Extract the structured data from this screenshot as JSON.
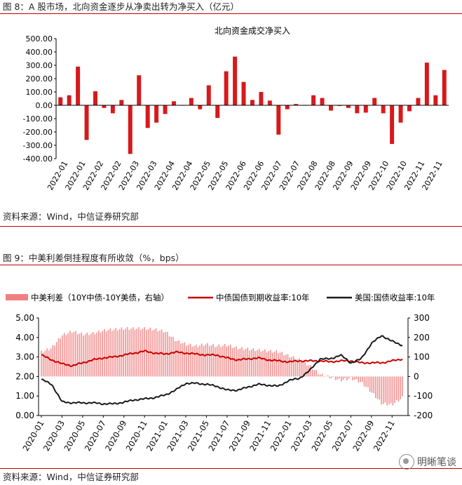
{
  "figure8": {
    "title": "图 8：A 股市场，北向资金逐步从净卖出转为净买入（亿元）",
    "source": "资料来源：Wind，中信证券研究部"
  },
  "figure9": {
    "title": "图 9：中美利差倒挂程度有所收敛（%，bps）",
    "source": "资料来源：Wind，中信证券研究部"
  },
  "watermark": {
    "text": "明晰笔谈"
  },
  "chart_data": [
    {
      "type": "bar",
      "title": "北向资金成交净买入",
      "color": "#d7191c",
      "ylim": [
        -400,
        500
      ],
      "yticks": [
        -400,
        -300,
        -200,
        -100,
        0,
        100,
        200,
        300,
        400,
        500
      ],
      "ytick_labels": [
        "-400.00",
        "-300.00",
        "-200.00",
        "-100.00",
        "0.00",
        "100.00",
        "200.00",
        "300.00",
        "400.00",
        "500.00"
      ],
      "xtick_labels": [
        "2022-01",
        "2022-01",
        "2022-02",
        "2022-02",
        "2022-03",
        "2022-03",
        "2022-04",
        "2022-04",
        "2022-05",
        "2022-05",
        "2022-06",
        "2022-06",
        "2022-07",
        "2022-07",
        "2022-08",
        "2022-08",
        "2022-09",
        "2022-09",
        "2022-10",
        "2022-10",
        "2022-11",
        "2022-11"
      ],
      "values": [
        60,
        75,
        290,
        -260,
        105,
        -20,
        -60,
        40,
        -365,
        225,
        -170,
        -130,
        -65,
        30,
        0,
        55,
        -30,
        150,
        -95,
        255,
        365,
        175,
        40,
        100,
        35,
        -220,
        -30,
        10,
        0,
        75,
        55,
        -40,
        -5,
        -20,
        -60,
        -55,
        55,
        -60,
        -290,
        -130,
        -45,
        55,
        320,
        75,
        265
      ]
    },
    {
      "type": "line",
      "subtype": "bar+line dual axis",
      "legend": [
        "中美利差（10Y中债-10Y美债，右轴）",
        "中债国债到期收益率:10年",
        "美国:国债收益率:10年"
      ],
      "legend_placement": "top",
      "colors": {
        "spread": "#f08080",
        "china": "#cc0000",
        "us": "#1a1a1a"
      },
      "ylim_left": [
        0,
        5
      ],
      "yticks_left": [
        "0.00",
        "1.00",
        "2.00",
        "3.00",
        "4.00",
        "5.00"
      ],
      "ylim_right": [
        -200,
        300
      ],
      "yticks_right": [
        "-200",
        "-100",
        "0",
        "100",
        "200",
        "300"
      ],
      "xtick_labels": [
        "2020-01",
        "2020-03",
        "2020-05",
        "2020-07",
        "2020-09",
        "2020-11",
        "2021-01",
        "2021-03",
        "2021-05",
        "2021-07",
        "2021-09",
        "2021-11",
        "2022-01",
        "2022-03",
        "2022-05",
        "2022-07",
        "2022-09",
        "2022-11"
      ],
      "series": [
        {
          "name": "中美利差（10Y中债-10Y美债，右轴）",
          "axis": "right",
          "months": [
            "2020-01",
            "2020-02",
            "2020-03",
            "2020-04",
            "2020-05",
            "2020-06",
            "2020-07",
            "2020-08",
            "2020-09",
            "2020-10",
            "2020-11",
            "2020-12",
            "2021-01",
            "2021-02",
            "2021-03",
            "2021-04",
            "2021-05",
            "2021-06",
            "2021-07",
            "2021-08",
            "2021-09",
            "2021-10",
            "2021-11",
            "2021-12",
            "2022-01",
            "2022-02",
            "2022-03",
            "2022-04",
            "2022-05",
            "2022-06",
            "2022-07",
            "2022-08",
            "2022-09",
            "2022-10",
            "2022-11",
            "2022-12"
          ],
          "values": [
            125,
            145,
            210,
            230,
            215,
            220,
            235,
            240,
            245,
            245,
            245,
            240,
            230,
            185,
            165,
            155,
            165,
            155,
            160,
            145,
            140,
            135,
            130,
            125,
            105,
            85,
            55,
            10,
            -5,
            -20,
            -10,
            -30,
            -80,
            -140,
            -145,
            -110
          ]
        },
        {
          "name": "中债国债到期收益率:10年",
          "axis": "left",
          "months": [
            "2020-01",
            "2020-02",
            "2020-03",
            "2020-04",
            "2020-05",
            "2020-06",
            "2020-07",
            "2020-08",
            "2020-09",
            "2020-10",
            "2020-11",
            "2020-12",
            "2021-01",
            "2021-02",
            "2021-03",
            "2021-04",
            "2021-05",
            "2021-06",
            "2021-07",
            "2021-08",
            "2021-09",
            "2021-10",
            "2021-11",
            "2021-12",
            "2022-01",
            "2022-02",
            "2022-03",
            "2022-04",
            "2022-05",
            "2022-06",
            "2022-07",
            "2022-08",
            "2022-09",
            "2022-10",
            "2022-11",
            "2022-12"
          ],
          "values": [
            3.1,
            2.85,
            2.65,
            2.55,
            2.7,
            2.85,
            2.95,
            3.0,
            3.1,
            3.2,
            3.3,
            3.2,
            3.15,
            3.25,
            3.2,
            3.15,
            3.1,
            3.1,
            2.95,
            2.85,
            2.9,
            2.95,
            2.85,
            2.8,
            2.75,
            2.8,
            2.8,
            2.8,
            2.75,
            2.8,
            2.8,
            2.7,
            2.7,
            2.7,
            2.8,
            2.9
          ]
        },
        {
          "name": "美国:国债收益率:10年",
          "axis": "left",
          "months": [
            "2020-01",
            "2020-02",
            "2020-03",
            "2020-04",
            "2020-05",
            "2020-06",
            "2020-07",
            "2020-08",
            "2020-09",
            "2020-10",
            "2020-11",
            "2020-12",
            "2021-01",
            "2021-02",
            "2021-03",
            "2021-04",
            "2021-05",
            "2021-06",
            "2021-07",
            "2021-08",
            "2021-09",
            "2021-10",
            "2021-11",
            "2021-12",
            "2022-01",
            "2022-02",
            "2022-03",
            "2022-04",
            "2022-05",
            "2022-06",
            "2022-07",
            "2022-08",
            "2022-09",
            "2022-10",
            "2022-11",
            "2022-12"
          ],
          "values": [
            1.85,
            1.6,
            0.7,
            0.65,
            0.65,
            0.65,
            0.6,
            0.6,
            0.68,
            0.8,
            0.85,
            0.92,
            1.05,
            1.3,
            1.65,
            1.65,
            1.6,
            1.5,
            1.3,
            1.3,
            1.45,
            1.6,
            1.55,
            1.5,
            1.8,
            1.9,
            2.3,
            2.9,
            2.9,
            3.1,
            2.7,
            2.9,
            3.7,
            4.1,
            3.8,
            3.6
          ]
        }
      ]
    }
  ]
}
